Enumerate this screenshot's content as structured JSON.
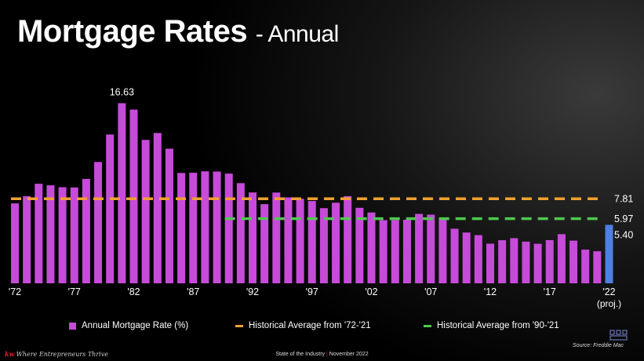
{
  "title": {
    "main": "Mortgage Rates",
    "sub": "- Annual"
  },
  "chart_data": {
    "type": "bar",
    "title": "Mortgage Rates - Annual",
    "categories": [
      "1972",
      "1973",
      "1974",
      "1975",
      "1976",
      "1977",
      "1978",
      "1979",
      "1980",
      "1981",
      "1982",
      "1983",
      "1984",
      "1985",
      "1986",
      "1987",
      "1988",
      "1989",
      "1990",
      "1991",
      "1992",
      "1993",
      "1994",
      "1995",
      "1996",
      "1997",
      "1998",
      "1999",
      "2000",
      "2001",
      "2002",
      "2003",
      "2004",
      "2005",
      "2006",
      "2007",
      "2008",
      "2009",
      "2010",
      "2011",
      "2012",
      "2013",
      "2014",
      "2015",
      "2016",
      "2017",
      "2018",
      "2019",
      "2020",
      "2021",
      "2022"
    ],
    "x_tick_labels": [
      {
        "index": 0,
        "label": "'72"
      },
      {
        "index": 5,
        "label": "'77"
      },
      {
        "index": 10,
        "label": "'82"
      },
      {
        "index": 15,
        "label": "'87"
      },
      {
        "index": 20,
        "label": "'92"
      },
      {
        "index": 25,
        "label": "'97"
      },
      {
        "index": 30,
        "label": "'02"
      },
      {
        "index": 35,
        "label": "'07"
      },
      {
        "index": 40,
        "label": "'12"
      },
      {
        "index": 45,
        "label": "'17"
      },
      {
        "index": 50,
        "label": "'22"
      }
    ],
    "x_tick_sublabel": {
      "index": 50,
      "label": "(proj.)"
    },
    "series": [
      {
        "name": "Annual Mortgage Rate (%)",
        "color": "#c64bd9",
        "projected_color": "#4f7fe0",
        "projected_index": 50,
        "values": [
          7.38,
          8.04,
          9.19,
          9.05,
          8.87,
          8.85,
          9.64,
          11.2,
          13.74,
          16.63,
          16.04,
          13.24,
          13.88,
          12.43,
          10.19,
          10.21,
          10.34,
          10.32,
          10.13,
          9.25,
          8.39,
          7.31,
          8.38,
          7.93,
          7.81,
          7.6,
          6.94,
          7.44,
          8.05,
          6.97,
          6.54,
          5.83,
          5.84,
          5.87,
          6.41,
          6.34,
          6.03,
          5.04,
          4.69,
          4.45,
          3.66,
          3.98,
          4.17,
          3.85,
          3.65,
          3.99,
          4.54,
          3.94,
          3.11,
          2.96,
          5.4
        ]
      }
    ],
    "reference_lines": [
      {
        "name": "Historical Average from '72-'21",
        "value": 7.81,
        "label": "7.81",
        "color": "#f0a030",
        "start_index": 0
      },
      {
        "name": "Historical Average from '90-'21",
        "value": 5.97,
        "label": "5.97",
        "color": "#4fc84f",
        "start_index": 18
      }
    ],
    "annotations": [
      {
        "index": 9,
        "label": "16.63"
      },
      {
        "index": 50,
        "label": "5.40"
      }
    ],
    "ylim": [
      0,
      18
    ],
    "grid": false,
    "legend_position": "bottom"
  },
  "legend": {
    "bar": "Annual Mortgage Rate (%)",
    "avg_72": "Historical Average from '72-'21",
    "avg_90": "Historical Average from '90-'21"
  },
  "footer": {
    "brand_kw": "kw",
    "tagline": "Where Entrepreneurs Thrive",
    "event": "State of the Industry",
    "separator": "|",
    "date": "November 2022",
    "source": "Source: Freddie Mac"
  }
}
